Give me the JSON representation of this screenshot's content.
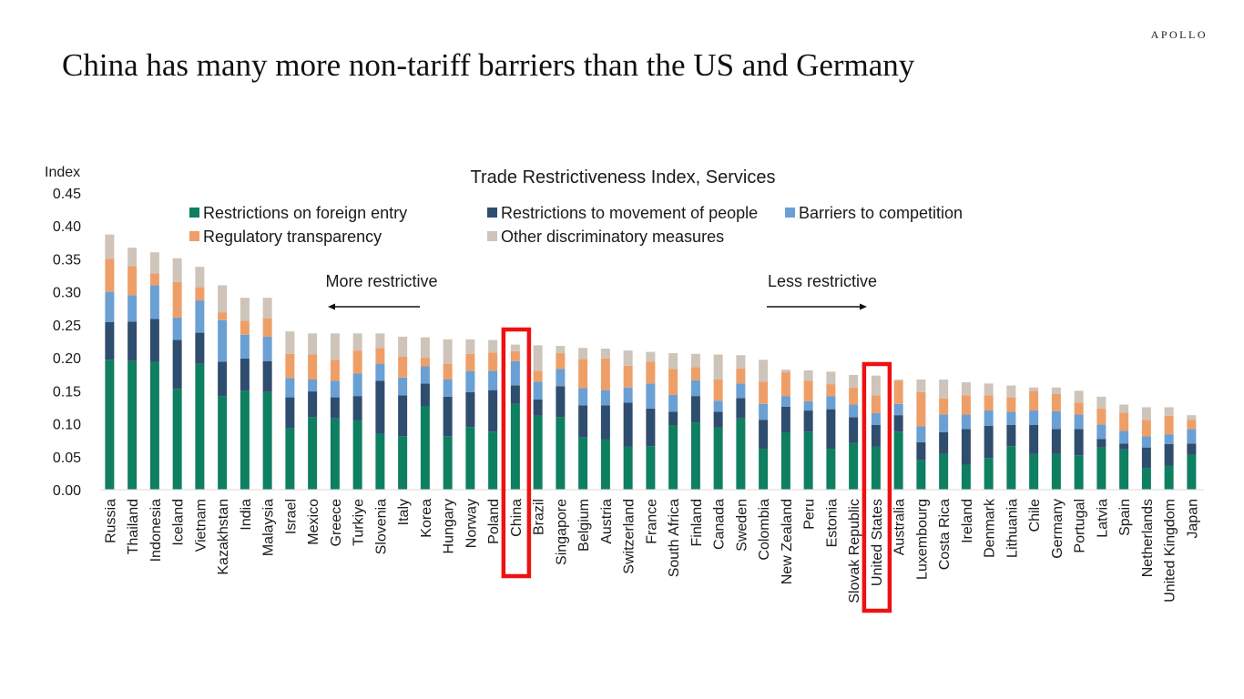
{
  "page": {
    "brand": "APOLLO",
    "headline": "China has many more non-tariff barriers than the US and Germany"
  },
  "chart_data": {
    "type": "bar",
    "stacked": true,
    "title": "Trade Restrictiveness Index, Services",
    "ylabel": "Index",
    "ylim": [
      0,
      0.45
    ],
    "yticks": [
      "0.00",
      "0.05",
      "0.10",
      "0.15",
      "0.20",
      "0.25",
      "0.30",
      "0.35",
      "0.40",
      "0.45"
    ],
    "annotations": {
      "left": "More restrictive",
      "right": "Less restrictive"
    },
    "highlighted": [
      "China",
      "United States"
    ],
    "colors": [
      "#0e7f60",
      "#2f4d6e",
      "#6aa0d4",
      "#ee9f68",
      "#cfc4ba"
    ],
    "categories": [
      "Russia",
      "Thailand",
      "Indonesia",
      "Iceland",
      "Vietnam",
      "Kazakhstan",
      "India",
      "Malaysia",
      "Israel",
      "Mexico",
      "Greece",
      "Turkiye",
      "Slovenia",
      "Italy",
      "Korea",
      "Hungary",
      "Norway",
      "Poland",
      "China",
      "Brazil",
      "Singapore",
      "Belgium",
      "Austria",
      "Switzerland",
      "France",
      "South Africa",
      "Finland",
      "Canada",
      "Sweden",
      "Colombia",
      "New Zealand",
      "Peru",
      "Estonia",
      "Slovak Republic",
      "United States",
      "Australia",
      "Luxembourg",
      "Costa Rica",
      "Ireland",
      "Denmark",
      "Lithuania",
      "Chile",
      "Germany",
      "Portugal",
      "Latvia",
      "Spain",
      "Netherlands",
      "United Kingdom",
      "Japan"
    ],
    "series": [
      {
        "name": "Restrictions on foreign entry",
        "values": [
          0.197,
          0.195,
          0.194,
          0.153,
          0.191,
          0.142,
          0.15,
          0.148,
          0.093,
          0.11,
          0.108,
          0.105,
          0.085,
          0.081,
          0.127,
          0.081,
          0.095,
          0.088,
          0.13,
          0.112,
          0.11,
          0.079,
          0.076,
          0.065,
          0.066,
          0.098,
          0.102,
          0.094,
          0.108,
          0.062,
          0.087,
          0.088,
          0.062,
          0.071,
          0.065,
          0.088,
          0.045,
          0.054,
          0.038,
          0.048,
          0.066,
          0.054,
          0.054,
          0.052,
          0.064,
          0.061,
          0.033,
          0.036,
          0.053
        ]
      },
      {
        "name": "Restrictions to movement of people",
        "values": [
          0.057,
          0.06,
          0.065,
          0.074,
          0.047,
          0.052,
          0.049,
          0.047,
          0.047,
          0.039,
          0.032,
          0.037,
          0.08,
          0.062,
          0.034,
          0.06,
          0.053,
          0.063,
          0.028,
          0.025,
          0.047,
          0.049,
          0.052,
          0.067,
          0.057,
          0.02,
          0.04,
          0.024,
          0.031,
          0.044,
          0.039,
          0.032,
          0.06,
          0.039,
          0.033,
          0.025,
          0.027,
          0.033,
          0.054,
          0.049,
          0.032,
          0.044,
          0.038,
          0.04,
          0.013,
          0.009,
          0.031,
          0.033,
          0.017
        ]
      },
      {
        "name": "Barriers to competition",
        "values": [
          0.046,
          0.04,
          0.051,
          0.034,
          0.049,
          0.063,
          0.036,
          0.037,
          0.029,
          0.018,
          0.025,
          0.034,
          0.026,
          0.027,
          0.026,
          0.026,
          0.032,
          0.029,
          0.037,
          0.027,
          0.026,
          0.026,
          0.023,
          0.023,
          0.038,
          0.026,
          0.024,
          0.017,
          0.022,
          0.024,
          0.016,
          0.014,
          0.02,
          0.019,
          0.018,
          0.017,
          0.024,
          0.027,
          0.022,
          0.023,
          0.02,
          0.022,
          0.027,
          0.022,
          0.022,
          0.019,
          0.017,
          0.015,
          0.022
        ]
      },
      {
        "name": "Regulatory transparency",
        "values": [
          0.05,
          0.044,
          0.018,
          0.054,
          0.02,
          0.012,
          0.021,
          0.028,
          0.037,
          0.038,
          0.032,
          0.035,
          0.024,
          0.032,
          0.013,
          0.024,
          0.026,
          0.028,
          0.015,
          0.016,
          0.024,
          0.044,
          0.048,
          0.033,
          0.033,
          0.039,
          0.02,
          0.032,
          0.023,
          0.034,
          0.036,
          0.031,
          0.018,
          0.026,
          0.027,
          0.035,
          0.052,
          0.024,
          0.029,
          0.023,
          0.022,
          0.03,
          0.026,
          0.018,
          0.024,
          0.028,
          0.025,
          0.028,
          0.014
        ]
      },
      {
        "name": "Other discriminatory measures",
        "values": [
          0.037,
          0.028,
          0.032,
          0.036,
          0.031,
          0.041,
          0.035,
          0.031,
          0.034,
          0.032,
          0.04,
          0.026,
          0.022,
          0.03,
          0.031,
          0.037,
          0.022,
          0.019,
          0.01,
          0.039,
          0.011,
          0.017,
          0.015,
          0.023,
          0.015,
          0.024,
          0.02,
          0.038,
          0.02,
          0.033,
          0.004,
          0.016,
          0.019,
          0.019,
          0.03,
          0.002,
          0.019,
          0.029,
          0.02,
          0.018,
          0.018,
          0.005,
          0.01,
          0.018,
          0.018,
          0.012,
          0.019,
          0.013,
          0.007
        ]
      }
    ]
  }
}
